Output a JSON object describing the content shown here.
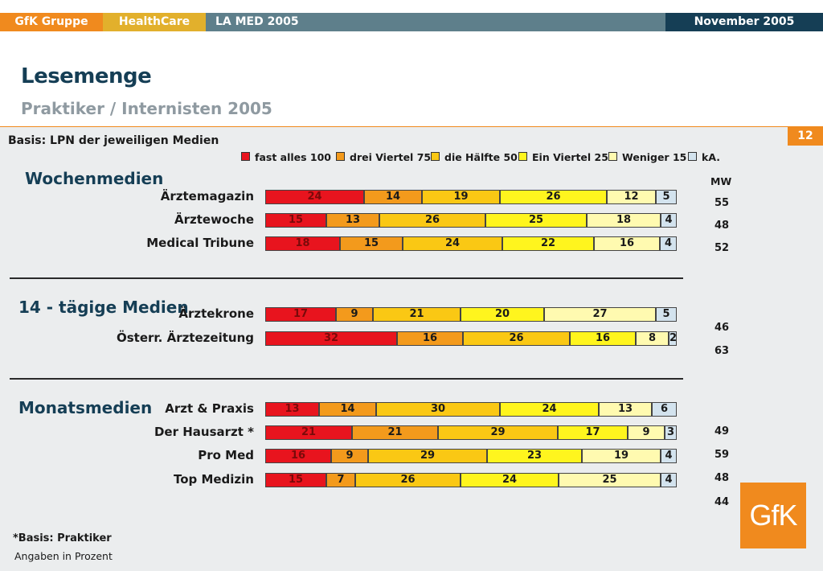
{
  "header": {
    "company": "GfK Gruppe",
    "division": "HealthCare",
    "study": "LA MED 2005",
    "date": "November 2005"
  },
  "page_number": "12",
  "logo_text": "GfK",
  "footnotes": {
    "basis_note": "*Basis: Praktiker",
    "unit_note": "Angaben in Prozent"
  },
  "mw_values": [
    "55",
    "48",
    "52",
    "46",
    "63",
    "49",
    "59",
    "48",
    "44"
  ],
  "colors": {
    "fast alles 100": "#e8141e",
    "drei Viertel 75": "#f39a1c",
    "die Hälfte 50": "#fac814",
    "Ein Viertel 25": "#fff51e",
    "Weniger 15": "#fffab0",
    "kA.": "#d3e3ee"
  },
  "chart_data": {
    "type": "bar",
    "orientation": "horizontal",
    "stacked": true,
    "title": "Lesemenge",
    "subtitle": "Praktiker / Internisten 2005",
    "basis": "Basis: LPN der jeweiligen Medien",
    "mw_label": "MW",
    "legend": [
      "fast alles 100",
      "drei Viertel 75",
      "die Hälfte 50",
      "Ein Viertel 25",
      "Weniger 15",
      "kA."
    ],
    "legend_position": "top",
    "groups": [
      {
        "name": "Wochenmedien",
        "rows": [
          {
            "label": "Ärztemagazin",
            "values": [
              24,
              14,
              19,
              26,
              12,
              5
            ]
          },
          {
            "label": "Ärztewoche",
            "values": [
              15,
              13,
              26,
              25,
              18,
              4
            ]
          },
          {
            "label": "Medical Tribune",
            "values": [
              18,
              15,
              24,
              22,
              16,
              4
            ]
          }
        ]
      },
      {
        "name": "14 - tägige Medien",
        "rows": [
          {
            "label": "Ärztekrone",
            "values": [
              17,
              9,
              21,
              20,
              27,
              5
            ]
          },
          {
            "label": "Österr. Ärztezeitung",
            "values": [
              32,
              16,
              26,
              16,
              8,
              2
            ]
          }
        ]
      },
      {
        "name": "Monatsmedien",
        "rows": [
          {
            "label": "Arzt & Praxis",
            "values": [
              13,
              14,
              30,
              24,
              13,
              6
            ]
          },
          {
            "label": "Der Hausarzt *",
            "values": [
              21,
              21,
              29,
              17,
              9,
              3
            ]
          },
          {
            "label": "Pro Med",
            "values": [
              16,
              9,
              29,
              23,
              19,
              4
            ]
          },
          {
            "label": "Top Medizin",
            "values": [
              15,
              7,
              26,
              24,
              25,
              4
            ]
          }
        ]
      }
    ],
    "xlim": [
      0,
      100
    ]
  }
}
